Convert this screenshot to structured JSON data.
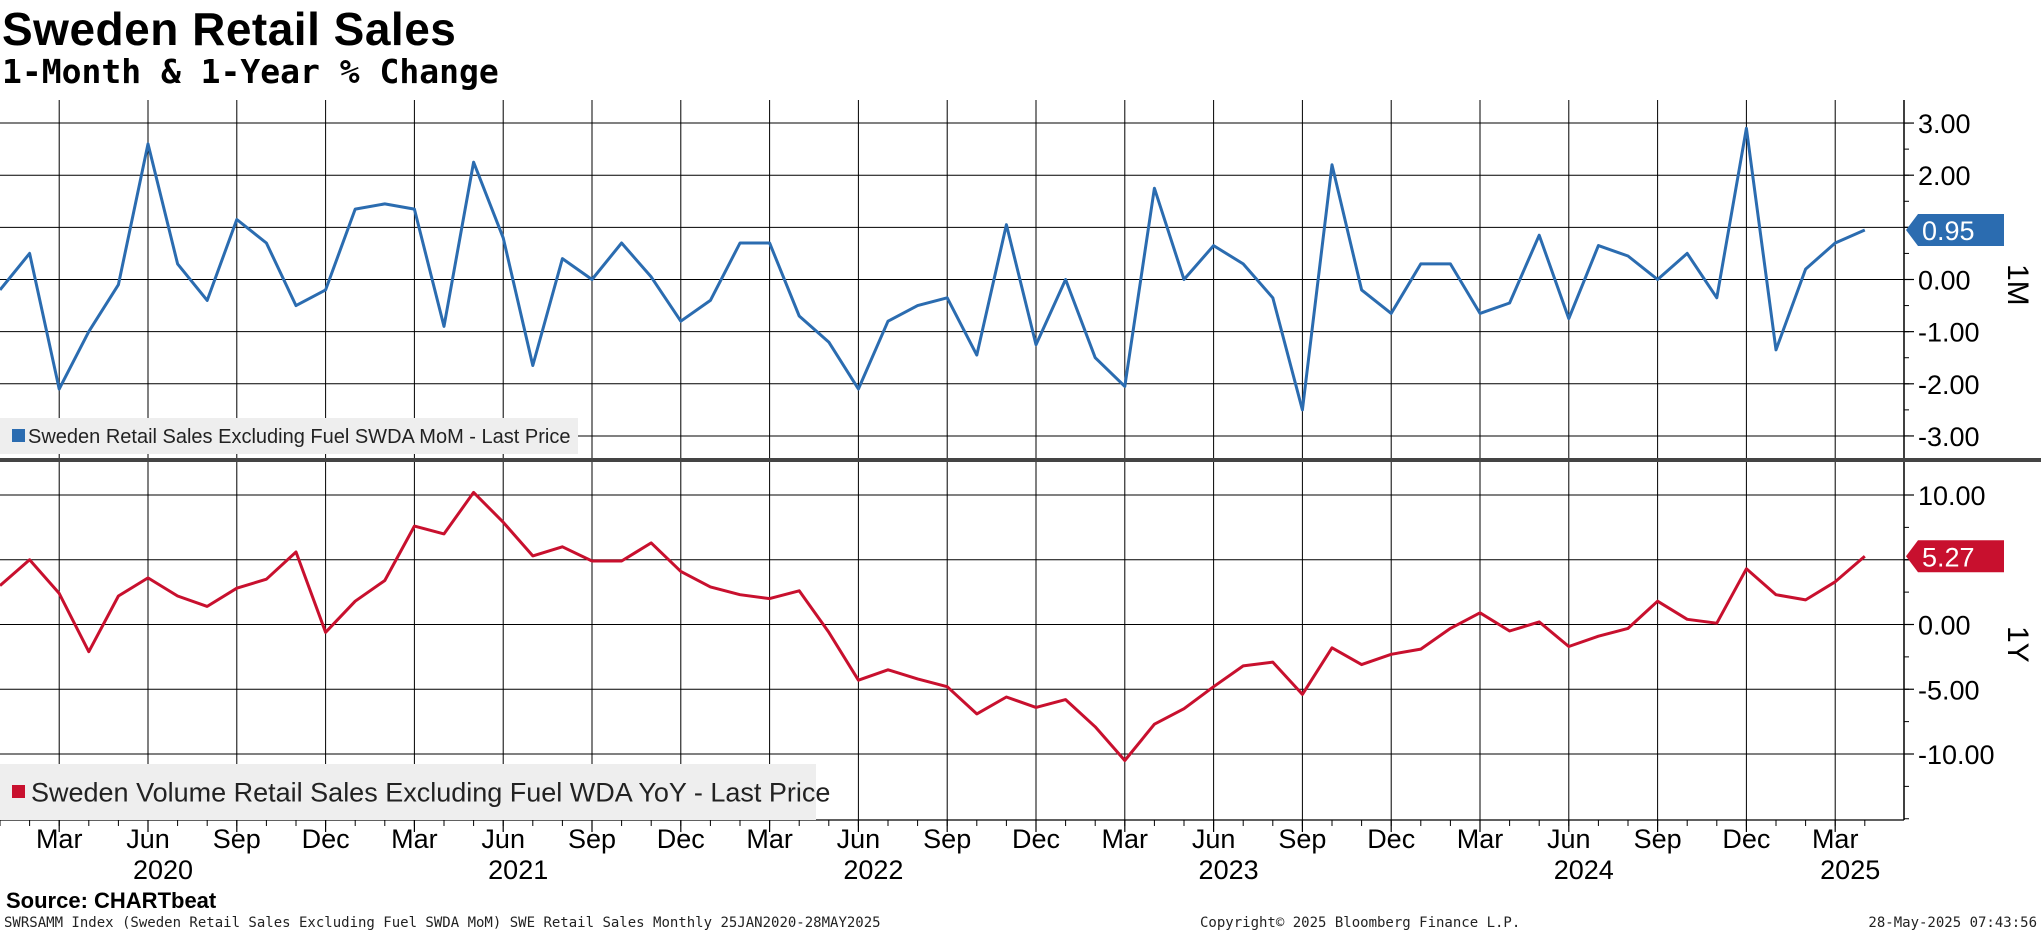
{
  "header": {
    "title": "Sweden Retail Sales",
    "subtitle": "1-Month & 1-Year % Change"
  },
  "footer": {
    "source": "Source: CHARTbeat",
    "description": "SWRSAMM Index (Sweden Retail Sales Excluding Fuel SWDA MoM) SWE Retail Sales  Monthly 25JAN2020-28MAY2025",
    "copyright": "Copyright© 2025 Bloomberg Finance L.P.",
    "timestamp": "28-May-2025 07:43:56"
  },
  "colors": {
    "mom_series": "#2b6cb0",
    "yoy_series": "#c8102e",
    "legend_bg": "#eeeeee",
    "grid": "#000000",
    "divider": "#444444"
  },
  "chart_data": [
    {
      "type": "line",
      "panel_label": "1M",
      "legend_position": "bottom-left",
      "grid": true,
      "ylim": [
        -3.5,
        3.4
      ],
      "yticks": [
        3,
        2,
        1,
        0,
        -1,
        -2,
        -3
      ],
      "ytick_labels": [
        "3.00",
        "2.00",
        "1.00",
        "0.00",
        "-1.00",
        "-2.00",
        "-3.00"
      ],
      "series": [
        {
          "name": "Sweden Retail Sales Excluding Fuel SWDA MoM - Last Price",
          "color": "#2b6cb0",
          "last_value_label": "0.95",
          "x": [
            "2020-01",
            "2020-02",
            "2020-03",
            "2020-04",
            "2020-05",
            "2020-06",
            "2020-07",
            "2020-08",
            "2020-09",
            "2020-10",
            "2020-11",
            "2020-12",
            "2021-01",
            "2021-02",
            "2021-03",
            "2021-04",
            "2021-05",
            "2021-06",
            "2021-07",
            "2021-08",
            "2021-09",
            "2021-10",
            "2021-11",
            "2021-12",
            "2022-01",
            "2022-02",
            "2022-03",
            "2022-04",
            "2022-05",
            "2022-06",
            "2022-07",
            "2022-08",
            "2022-09",
            "2022-10",
            "2022-11",
            "2022-12",
            "2023-01",
            "2023-02",
            "2023-03",
            "2023-04",
            "2023-05",
            "2023-06",
            "2023-07",
            "2023-08",
            "2023-09",
            "2023-10",
            "2023-11",
            "2023-12",
            "2024-01",
            "2024-02",
            "2024-03",
            "2024-04",
            "2024-05",
            "2024-06",
            "2024-07",
            "2024-08",
            "2024-09",
            "2024-10",
            "2024-11",
            "2024-12",
            "2025-01",
            "2025-02",
            "2025-03",
            "2025-04"
          ],
          "values": [
            -0.2,
            0.5,
            -2.1,
            -1.0,
            -0.1,
            2.6,
            0.3,
            -0.4,
            1.15,
            0.7,
            -0.5,
            -0.2,
            1.35,
            1.45,
            1.35,
            -0.9,
            2.25,
            0.8,
            -1.65,
            0.4,
            0.0,
            0.7,
            0.05,
            -0.8,
            -0.4,
            0.7,
            0.7,
            -0.7,
            -1.2,
            -2.1,
            -0.8,
            -0.5,
            -0.35,
            -1.45,
            1.05,
            -1.25,
            0.0,
            -1.5,
            -2.05,
            1.75,
            0.0,
            0.65,
            0.3,
            -0.35,
            -2.5,
            2.2,
            -0.2,
            -0.65,
            0.3,
            0.3,
            -0.65,
            -0.45,
            0.85,
            -0.75,
            0.65,
            0.45,
            0.0,
            0.5,
            -0.35,
            2.9,
            -1.35,
            0.2,
            0.7,
            0.95
          ]
        }
      ]
    },
    {
      "type": "line",
      "panel_label": "1Y",
      "legend_position": "bottom-left",
      "grid": true,
      "ylim": [
        -15,
        11.5
      ],
      "yticks": [
        10,
        5,
        0,
        -5,
        -10
      ],
      "ytick_labels": [
        "10.00",
        "5.00",
        "0.00",
        "-5.00",
        "-10.00"
      ],
      "x_tick_labels": [
        "Mar",
        "Jun",
        "Sep",
        "Dec",
        "Mar",
        "Jun",
        "Sep",
        "Dec",
        "Mar",
        "Jun",
        "Sep",
        "Dec",
        "Mar",
        "Jun",
        "Sep",
        "Dec",
        "Mar",
        "Jun",
        "Sep",
        "Dec",
        "Mar"
      ],
      "x_year_labels": [
        "2020",
        "2021",
        "2022",
        "2023",
        "2024",
        "2025"
      ],
      "series": [
        {
          "name": "Sweden Volume Retail Sales Excluding Fuel WDA YoY - Last Price",
          "color": "#c8102e",
          "last_value_label": "5.27",
          "x": [
            "2020-01",
            "2020-02",
            "2020-03",
            "2020-04",
            "2020-05",
            "2020-06",
            "2020-07",
            "2020-08",
            "2020-09",
            "2020-10",
            "2020-11",
            "2020-12",
            "2021-01",
            "2021-02",
            "2021-03",
            "2021-04",
            "2021-05",
            "2021-06",
            "2021-07",
            "2021-08",
            "2021-09",
            "2021-10",
            "2021-11",
            "2021-12",
            "2022-01",
            "2022-02",
            "2022-03",
            "2022-04",
            "2022-05",
            "2022-06",
            "2022-07",
            "2022-08",
            "2022-09",
            "2022-10",
            "2022-11",
            "2022-12",
            "2023-01",
            "2023-02",
            "2023-03",
            "2023-04",
            "2023-05",
            "2023-06",
            "2023-07",
            "2023-08",
            "2023-09",
            "2023-10",
            "2023-11",
            "2023-12",
            "2024-01",
            "2024-02",
            "2024-03",
            "2024-04",
            "2024-05",
            "2024-06",
            "2024-07",
            "2024-08",
            "2024-09",
            "2024-10",
            "2024-11",
            "2024-12",
            "2025-01",
            "2025-02",
            "2025-03",
            "2025-04"
          ],
          "values": [
            3.0,
            5.0,
            2.4,
            -2.1,
            2.2,
            3.6,
            2.2,
            1.4,
            2.8,
            3.5,
            5.6,
            -0.6,
            1.8,
            3.4,
            7.6,
            7.0,
            10.2,
            7.9,
            5.3,
            6.0,
            4.9,
            4.9,
            6.3,
            4.1,
            2.9,
            2.3,
            2.0,
            2.6,
            -0.6,
            -4.3,
            -3.5,
            -4.2,
            -4.8,
            -6.9,
            -5.6,
            -6.4,
            -5.8,
            -7.9,
            -10.5,
            -7.7,
            -6.5,
            -4.8,
            -3.2,
            -2.9,
            -5.4,
            -1.8,
            -3.1,
            -2.3,
            -1.9,
            -0.3,
            0.9,
            -0.5,
            0.2,
            -1.7,
            -0.9,
            -0.3,
            1.8,
            0.4,
            0.1,
            4.3,
            2.3,
            1.9,
            3.3,
            5.27
          ]
        }
      ]
    }
  ]
}
